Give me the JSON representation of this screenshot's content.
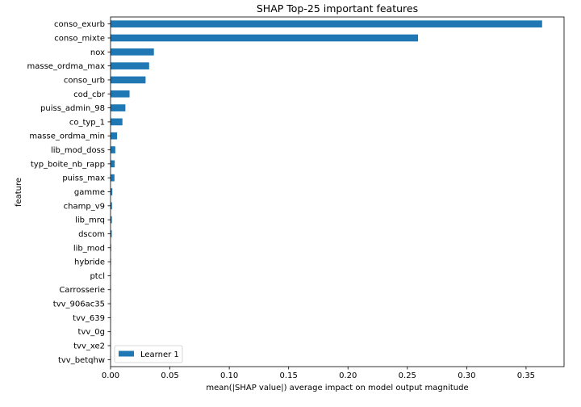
{
  "chart_data": {
    "type": "bar",
    "orientation": "horizontal",
    "title": "SHAP Top-25 important features",
    "xlabel": "mean(|SHAP value|) average impact on model output magnitude",
    "ylabel": "feature",
    "xlim": [
      0,
      0.382
    ],
    "xticks": [
      0.0,
      0.05,
      0.1,
      0.15,
      0.2,
      0.25,
      0.3,
      0.35
    ],
    "xtick_labels": [
      "0.00",
      "0.05",
      "0.10",
      "0.15",
      "0.20",
      "0.25",
      "0.30",
      "0.35"
    ],
    "grid": false,
    "legend_position": "lower-left",
    "categories": [
      "conso_exurb",
      "conso_mixte",
      "nox",
      "masse_ordma_max",
      "conso_urb",
      "cod_cbr",
      "puiss_admin_98",
      "co_typ_1",
      "masse_ordma_min",
      "lib_mod_doss",
      "typ_boite_nb_rapp",
      "puiss_max",
      "gamme",
      "champ_v9",
      "lib_mrq",
      "dscom",
      "lib_mod",
      "hybride",
      "ptcl",
      "Carrosserie",
      "tvv_906ac35",
      "tvv_639",
      "tvv_0g",
      "tvv_xe2",
      "tvv_betqhw"
    ],
    "series": [
      {
        "name": "Learner 1",
        "color": "#1f77b4",
        "values": [
          0.3635,
          0.259,
          0.0365,
          0.0325,
          0.0295,
          0.016,
          0.0125,
          0.01,
          0.0055,
          0.004,
          0.0035,
          0.0033,
          0.0015,
          0.0012,
          0.0011,
          0.001,
          0.0005,
          0.0004,
          0.0003,
          0.0003,
          0.0002,
          0.0002,
          0.0001,
          0.0001,
          0.0001
        ]
      }
    ]
  }
}
